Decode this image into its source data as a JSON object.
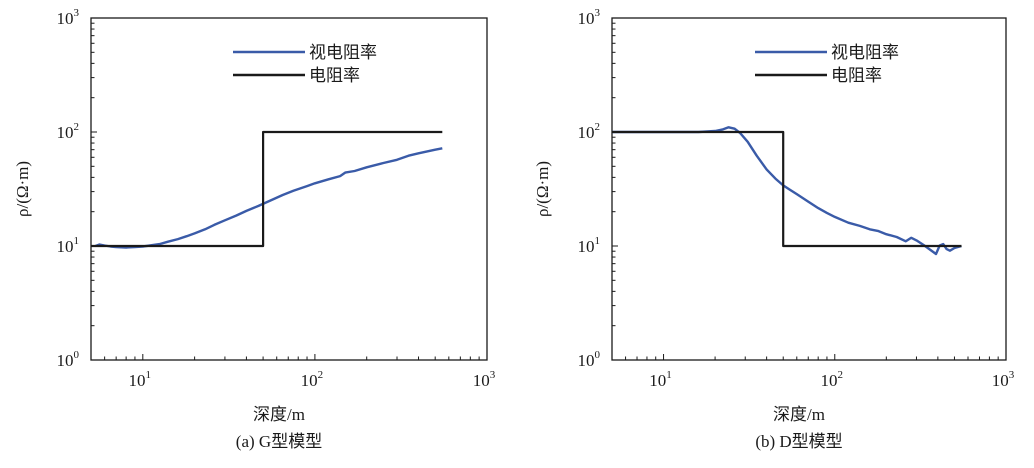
{
  "chart_data": [
    {
      "type": "line",
      "caption": "(a) G型模型",
      "xlabel": "深度/m",
      "ylabel": "ρ/(Ω·m)",
      "xscale": "log",
      "yscale": "log",
      "xlim": [
        5,
        1000
      ],
      "ylim": [
        1,
        1000
      ],
      "x_ticks": [
        {
          "base": "10",
          "exp": "1"
        },
        {
          "base": "10",
          "exp": "2"
        },
        {
          "base": "10",
          "exp": "3"
        }
      ],
      "y_ticks": [
        {
          "base": "10",
          "exp": "0"
        },
        {
          "base": "10",
          "exp": "1"
        },
        {
          "base": "10",
          "exp": "2"
        },
        {
          "base": "10",
          "exp": "3"
        }
      ],
      "legend_position": "top-right",
      "series": [
        {
          "name": "视电阻率",
          "color": "#3a5ba8",
          "x": [
            5.3,
            5.6,
            6,
            6.5,
            7,
            8,
            9,
            10,
            11,
            12.5,
            14,
            16,
            18,
            20,
            23,
            26,
            30,
            35,
            40,
            47,
            55,
            65,
            75,
            90,
            100,
            120,
            140,
            150,
            170,
            200,
            250,
            300,
            350,
            400,
            500,
            550
          ],
          "y": [
            10.0,
            10.3,
            10.1,
            9.9,
            9.8,
            9.7,
            9.8,
            9.9,
            10.1,
            10.4,
            10.9,
            11.5,
            12.2,
            12.9,
            14.0,
            15.3,
            16.8,
            18.5,
            20.3,
            22.5,
            25.0,
            28.0,
            30.5,
            33.5,
            35.5,
            38.5,
            41.0,
            44.0,
            45.5,
            49.0,
            53.5,
            57.0,
            62.0,
            65.0,
            70.0,
            72.0
          ]
        },
        {
          "name": "电阻率",
          "color": "#1a1a1a",
          "x": [
            5,
            50,
            50,
            550
          ],
          "y": [
            10,
            10,
            100,
            100
          ]
        }
      ]
    },
    {
      "type": "line",
      "caption": "(b) D型模型",
      "xlabel": "深度/m",
      "ylabel": "ρ/(Ω·m)",
      "xscale": "log",
      "yscale": "log",
      "xlim": [
        5,
        1000
      ],
      "ylim": [
        1,
        1000
      ],
      "x_ticks": [
        {
          "base": "10",
          "exp": "1"
        },
        {
          "base": "10",
          "exp": "2"
        },
        {
          "base": "10",
          "exp": "3"
        }
      ],
      "y_ticks": [
        {
          "base": "10",
          "exp": "0"
        },
        {
          "base": "10",
          "exp": "1"
        },
        {
          "base": "10",
          "exp": "2"
        },
        {
          "base": "10",
          "exp": "3"
        }
      ],
      "legend_position": "top-right",
      "series": [
        {
          "name": "视电阻率",
          "color": "#3a5ba8",
          "x": [
            5,
            8,
            12,
            16,
            20,
            22,
            24,
            26,
            28,
            31,
            35,
            40,
            45,
            50,
            55,
            60,
            70,
            80,
            90,
            100,
            120,
            140,
            160,
            180,
            200,
            230,
            260,
            280,
            300,
            330,
            360,
            390,
            410,
            430,
            450,
            470,
            500,
            550
          ],
          "y": [
            100,
            100,
            100,
            100,
            102,
            105,
            110,
            107,
            98,
            82,
            62,
            47,
            39,
            34,
            31,
            28.5,
            24.5,
            21.5,
            19.5,
            18.0,
            16.0,
            15.0,
            14.0,
            13.5,
            12.7,
            12.0,
            11.0,
            11.8,
            11.2,
            10.2,
            9.3,
            8.5,
            10.1,
            10.4,
            9.4,
            9.1,
            9.6,
            10.0
          ]
        },
        {
          "name": "电阻率",
          "color": "#1a1a1a",
          "x": [
            5,
            50,
            50,
            550
          ],
          "y": [
            100,
            100,
            10,
            10
          ]
        }
      ]
    }
  ]
}
